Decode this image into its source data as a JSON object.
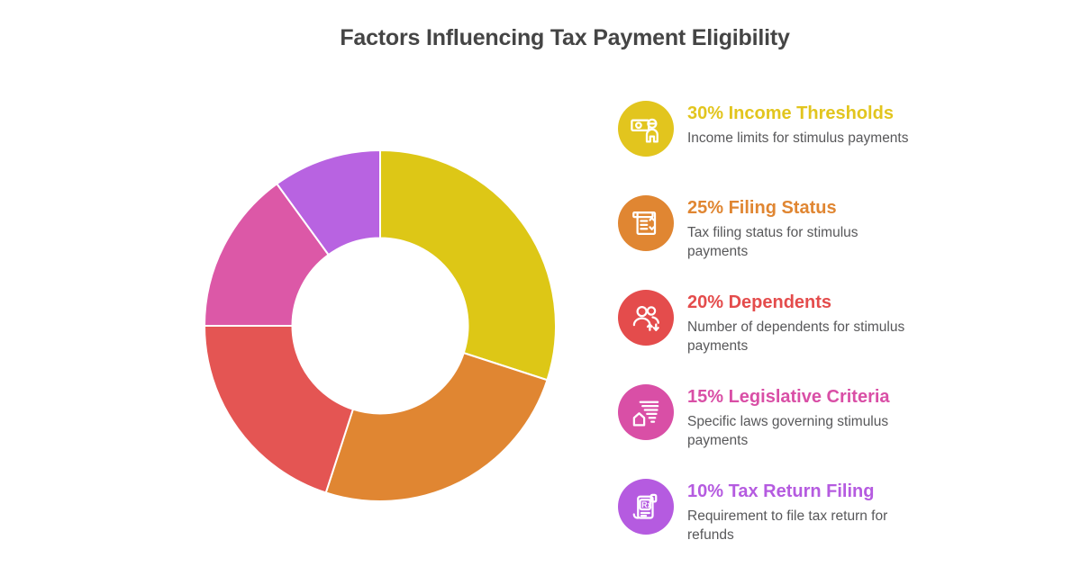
{
  "header": {
    "title": "Factors Influencing Tax Payment Eligibility",
    "color": "#454545"
  },
  "chart_data": {
    "type": "pie",
    "variant": "donut",
    "title": "Factors Influencing Tax Payment Eligibility",
    "direction": "clockwise",
    "start_angle_deg": 0,
    "inner_radius_ratio": 0.5,
    "segment_separator_color": "#ffffff",
    "categories": [
      "Income Thresholds",
      "Filing Status",
      "Dependents",
      "Legislative Criteria",
      "Tax Return Filing"
    ],
    "values": [
      30,
      25,
      20,
      15,
      10
    ],
    "colors": [
      "#ddc716",
      "#e08632",
      "#e45553",
      "#dc58a7",
      "#b863e1"
    ],
    "legend_position": "right"
  },
  "legend": {
    "items": [
      {
        "title": "30% Income Thresholds",
        "description": "Income limits for stimulus payments",
        "color": "#e2c51e",
        "icon": "money-person-icon"
      },
      {
        "title": "25% Filing Status",
        "description": "Tax filing status for stimulus payments",
        "color": "#e08632",
        "icon": "tax-document-icon"
      },
      {
        "title": "20% Dependents",
        "description": "Number of dependents for stimulus payments",
        "color": "#e44c4c",
        "icon": "dependents-people-icon"
      },
      {
        "title": "15% Legislative Criteria",
        "description": "Specific laws governing stimulus payments",
        "color": "#d94fa6",
        "icon": "legislation-house-icon"
      },
      {
        "title": "10% Tax Return Filing",
        "description": "Requirement to file tax return for refunds",
        "color": "#b55be0",
        "icon": "tax-return-scroll-icon"
      }
    ]
  }
}
